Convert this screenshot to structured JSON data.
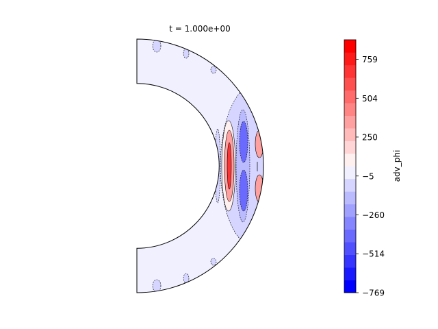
{
  "chart_data": {
    "type": "heatmap",
    "title": "t = 1.000e+00",
    "colorbar": {
      "label": "adv_phi",
      "tick_labels": [
        "759",
        "504",
        "250",
        "−5",
        "−260",
        "−514",
        "−769"
      ],
      "tick_values": [
        759,
        504,
        250,
        -5,
        -260,
        -514,
        -769
      ],
      "range": [
        -769,
        887
      ],
      "levels": 20,
      "colormap": "bwr",
      "colors": [
        "#0000ff",
        "#1a1aff",
        "#3535ff",
        "#5050ff",
        "#6a6aff",
        "#8585ff",
        "#a0a0ff",
        "#babaff",
        "#d5d5ff",
        "#f0f0ff",
        "#fff0f0",
        "#ffd5d5",
        "#ffbaba",
        "#ffa0a0",
        "#ff8585",
        "#ff6a6a",
        "#ff5050",
        "#ff3535",
        "#ff1a1a",
        "#ff0000"
      ]
    },
    "domain": {
      "shape": "half annulus (meridional slice of spherical shell)",
      "inner_radius_ratio": 0.65,
      "background_level": -5
    },
    "features": [
      {
        "name": "inner positive lobe",
        "theta_deg": 90,
        "r_frac": 0.78,
        "peak": 600,
        "sign": "positive"
      },
      {
        "name": "negative band",
        "theta_deg": 90,
        "r_frac": 0.86,
        "peak": -380,
        "sign": "negative"
      },
      {
        "name": "outer edge positive lobes",
        "theta_deg": [
          80,
          100
        ],
        "r_frac": 0.98,
        "peak": 350,
        "sign": "positive"
      }
    ]
  }
}
